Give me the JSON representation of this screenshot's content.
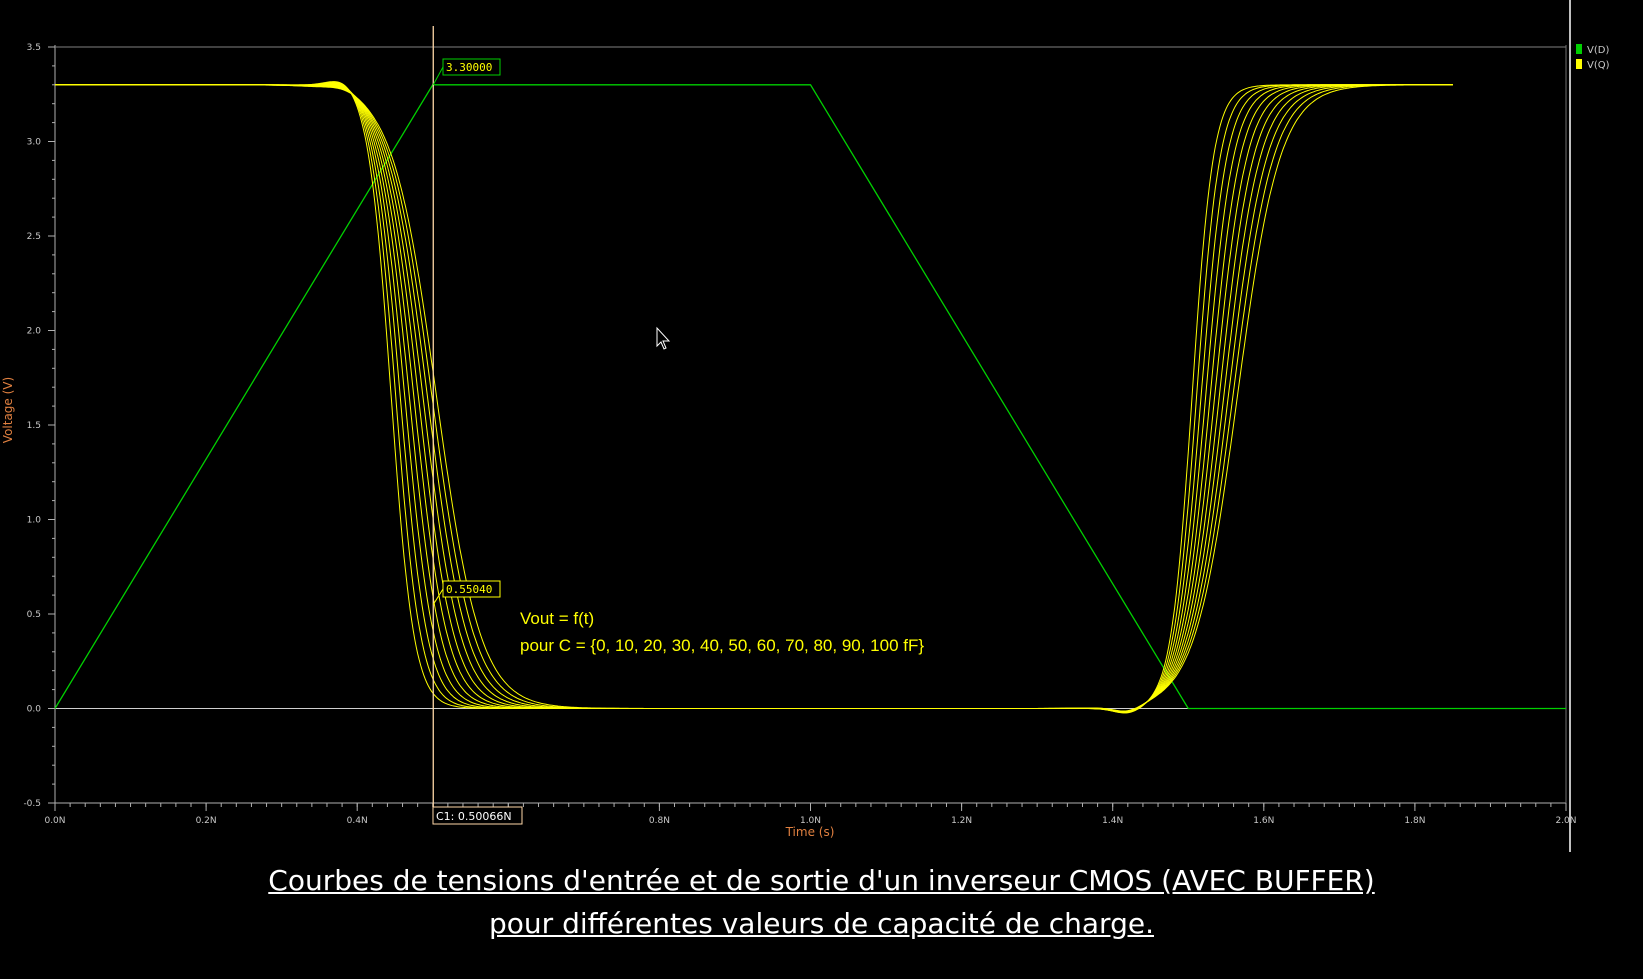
{
  "chart_data": {
    "type": "line",
    "xlabel": "Time (s)",
    "ylabel": "Voltage (V)",
    "xlim": [
      0,
      2.0
    ],
    "ylim": [
      -0.5,
      3.5
    ],
    "x_ticks": [
      0.0,
      0.2,
      0.4,
      0.6,
      0.8,
      1.0,
      1.2,
      1.4,
      1.6,
      1.8,
      2.0
    ],
    "x_tick_labels": [
      "0.0N",
      "0.2N",
      "0.4N",
      "",
      "0.8N",
      "1.0N",
      "1.2N",
      "1.4N",
      "1.6N",
      "1.8N",
      "2.0N"
    ],
    "y_ticks": [
      -0.5,
      0.0,
      0.5,
      1.0,
      1.5,
      2.0,
      2.5,
      3.0,
      3.5
    ],
    "y_tick_labels": [
      "-0.5",
      "0.0",
      "0.5",
      "1.0",
      "1.5",
      "2.0",
      "2.5",
      "3.0",
      "3.5"
    ],
    "grid": false,
    "legend_position": "top-right",
    "colors": {
      "input": "#00d000",
      "output": "#ffff00",
      "axis": "#b0b0b0",
      "cursor": "#ffd8a8",
      "axis_label": "#e08040",
      "annotation": "#ffff00"
    },
    "series": [
      {
        "name": "V(D)",
        "x": [
          0.0,
          0.5,
          1.0,
          1.5,
          2.0
        ],
        "y": [
          0.0,
          3.3,
          3.3,
          0.0,
          0.0
        ]
      },
      {
        "name": "V(Q)",
        "family": "load capacitance sweep",
        "sweep": [
          0,
          10,
          20,
          30,
          40,
          50,
          60,
          70,
          80,
          90,
          100
        ],
        "x": [
          0.0,
          0.3,
          0.385,
          0.44,
          0.5,
          0.55,
          0.6,
          0.7,
          1.0,
          1.35,
          1.42,
          1.47,
          1.52,
          1.6,
          1.7,
          1.85
        ],
        "y": [
          3.3,
          3.3,
          3.35,
          2.6,
          0.6,
          0.2,
          0.02,
          0.0,
          0.0,
          0.0,
          -0.03,
          0.5,
          2.4,
          3.2,
          3.3,
          3.3
        ]
      }
    ],
    "cursor": {
      "x": 0.50066,
      "label": "C1: 0.50066N",
      "readouts": [
        "3.30000",
        "0.55040"
      ]
    },
    "annotation": {
      "line1": "Vout = f(t)",
      "line2": "pour C = {0, 10, 20, 30, 40, 50, 60, 70, 80, 90, 100 fF}"
    }
  },
  "caption": {
    "line1": "Courbes de tensions d'entrée et de sortie d'un inverseur CMOS (AVEC BUFFER)",
    "line2": "pour différentes valeurs de capacité de charge."
  }
}
